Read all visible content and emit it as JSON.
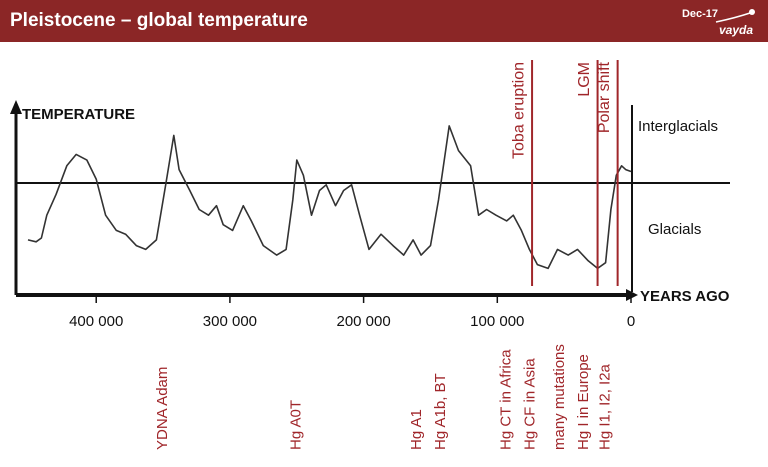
{
  "header": {
    "date": "Dec-17",
    "brand": "vayda"
  },
  "chart_data": {
    "type": "line",
    "title": "Pleistocene – global temperature",
    "x_label": "YEARS AGO",
    "y_label": "TEMPERATURE",
    "zones": [
      "Interglacials",
      "Glacials"
    ],
    "xlim": [
      460000,
      0
    ],
    "xticks": [
      {
        "value": 400000,
        "label": "400 000"
      },
      {
        "value": 300000,
        "label": "300 000"
      },
      {
        "value": 200000,
        "label": "200 000"
      },
      {
        "value": 100000,
        "label": "100 000"
      },
      0
    ],
    "ylim": [
      0,
      100
    ],
    "color": "#333333",
    "x": [
      451000,
      445000,
      441000,
      437000,
      430000,
      422000,
      415000,
      407000,
      400000,
      393000,
      385000,
      378000,
      370000,
      363000,
      355000,
      348000,
      342000,
      338000,
      330000,
      323000,
      316000,
      310000,
      305000,
      298000,
      290000,
      284000,
      275000,
      265000,
      258000,
      253000,
      250000,
      245000,
      239000,
      233000,
      228000,
      221000,
      215000,
      209000,
      203000,
      196000,
      187000,
      178000,
      170000,
      163000,
      157000,
      150000,
      144000,
      136000,
      129000,
      120000,
      114000,
      108000,
      101000,
      93000,
      88000,
      82000,
      76000,
      70000,
      62000,
      55000,
      47000,
      40000,
      32000,
      25000,
      19000,
      15000,
      11000,
      7000,
      4000,
      0
    ],
    "values": [
      29,
      28,
      30,
      42,
      53,
      68,
      74,
      71,
      61,
      42,
      34,
      32,
      26,
      24,
      29,
      58,
      84,
      66,
      55,
      45,
      42,
      47,
      37,
      34,
      47,
      39,
      26,
      21,
      24,
      50,
      71,
      63,
      42,
      55,
      58,
      47,
      55,
      58,
      42,
      24,
      32,
      26,
      21,
      29,
      21,
      26,
      50,
      89,
      76,
      68,
      42,
      45,
      42,
      39,
      42,
      34,
      24,
      16,
      14,
      24,
      21,
      24,
      18,
      14,
      17,
      45,
      63,
      68,
      66,
      65
    ],
    "event_color": "#a0262a",
    "events": [
      {
        "label": "Toba eruption",
        "x": 74000
      },
      {
        "label": "LGM",
        "x": 25000
      },
      {
        "label": "Polar shift",
        "x": 10000
      }
    ],
    "haplogroups": [
      {
        "label": "YDNA Adam",
        "x": 350000
      },
      {
        "label": "Hg A0T",
        "x": 250000
      },
      {
        "label": "Hg A1",
        "x": 160000
      },
      {
        "label": "Hg A1b, BT",
        "x": 142000
      },
      {
        "label": "Hg CT in Africa",
        "x": 93000
      },
      {
        "label": "Hg CF in Asia",
        "x": 75000
      },
      {
        "label": "many mutations",
        "x": 53000
      },
      {
        "label": "Hg I in Europe",
        "x": 35000
      },
      {
        "label": "Hg I1, I2, I2a",
        "x": 19000
      }
    ]
  }
}
